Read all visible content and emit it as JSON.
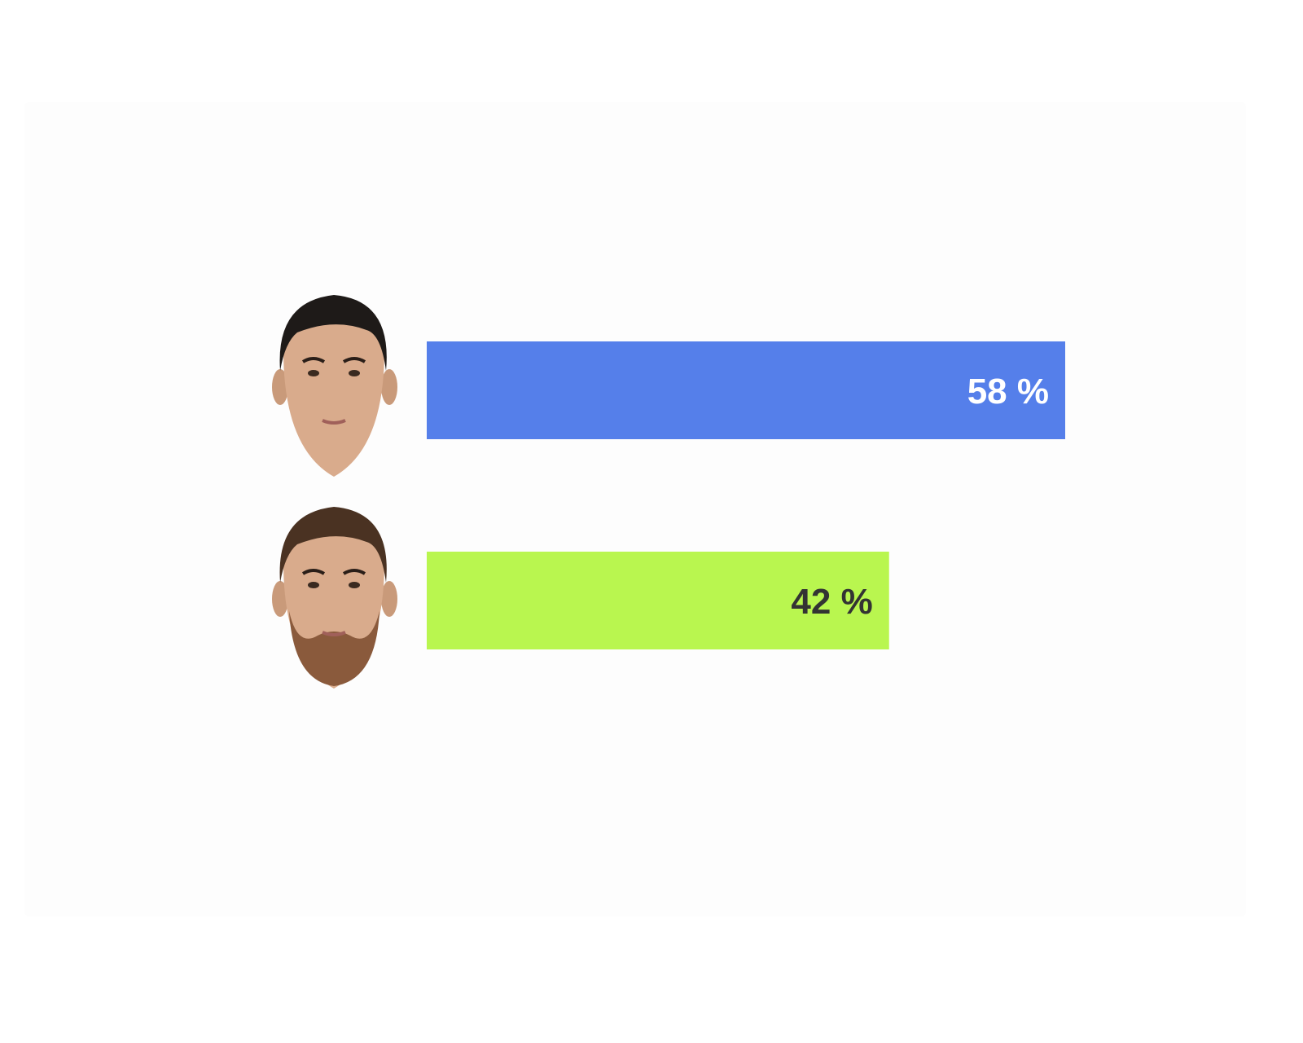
{
  "chart_data": {
    "type": "bar",
    "orientation": "horizontal",
    "title": "",
    "xlabel": "",
    "ylabel": "",
    "xlim": [
      0,
      100
    ],
    "grid": false,
    "categories": [
      "player-1-portrait",
      "player-2-portrait"
    ],
    "values": [
      58,
      42
    ],
    "data_labels": [
      "58 %",
      "42 %"
    ],
    "colors": [
      "#557fea",
      "#b9f64f"
    ],
    "label_colors": [
      "#ffffff",
      "#333333"
    ]
  }
}
